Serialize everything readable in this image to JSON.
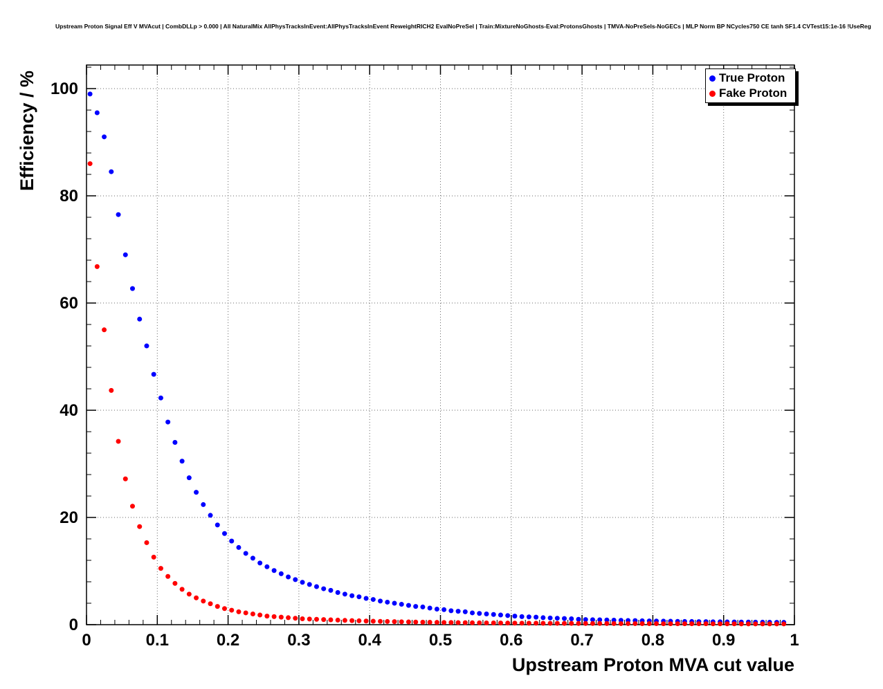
{
  "page": {
    "background": "#ffffff",
    "text_color": "#000000"
  },
  "chart_data": {
    "type": "scatter",
    "title": "Upstream Proton Signal Eff V MVAcut | CombDLLp > 0.000 | All NaturalMix AllPhysTracksInEvent:AllPhysTracksInEvent ReweightRICH2 EvalNoPreSel | Train:MixtureNoGhosts-Eval:ProtonsGhosts | TMVA-NoPreSels-NoGECs | MLP Norm BP NCycles750 CE tanh SF1.4 CVTest15:1e-16 !UseReg",
    "xlabel": "Upstream Proton MVA cut value",
    "ylabel": "Efficiency / %",
    "xlim": [
      0,
      1
    ],
    "ylim": [
      0,
      104.4
    ],
    "grid": true,
    "grid_color": "#666666",
    "frame_color": "#000000",
    "x_ticks": [
      0,
      0.1,
      0.2,
      0.3,
      0.4,
      0.5,
      0.6,
      0.7,
      0.8,
      0.9,
      1
    ],
    "x_tick_labels": [
      "0",
      "0.1",
      "0.2",
      "0.3",
      "0.4",
      "0.5",
      "0.6",
      "0.7",
      "0.8",
      "0.9",
      "1"
    ],
    "x_minor_step": 0.02,
    "y_ticks": [
      0,
      20,
      40,
      60,
      80,
      100
    ],
    "y_tick_labels": [
      "0",
      "20",
      "40",
      "60",
      "80",
      "100"
    ],
    "y_minor_step": 4,
    "legend": {
      "position": "top-right",
      "entries": [
        {
          "label": "True Proton",
          "color": "#0000ff",
          "marker": "circle"
        },
        {
          "label": "Fake Proton",
          "color": "#ff0000",
          "marker": "circle"
        }
      ]
    },
    "x": [
      0.005,
      0.015,
      0.025,
      0.035,
      0.045,
      0.055,
      0.065,
      0.075,
      0.085,
      0.095,
      0.105,
      0.115,
      0.125,
      0.135,
      0.145,
      0.155,
      0.165,
      0.175,
      0.185,
      0.195,
      0.205,
      0.215,
      0.225,
      0.235,
      0.245,
      0.255,
      0.265,
      0.275,
      0.285,
      0.295,
      0.305,
      0.315,
      0.325,
      0.335,
      0.345,
      0.355,
      0.365,
      0.375,
      0.385,
      0.395,
      0.405,
      0.415,
      0.425,
      0.435,
      0.445,
      0.455,
      0.465,
      0.475,
      0.485,
      0.495,
      0.505,
      0.515,
      0.525,
      0.535,
      0.545,
      0.555,
      0.565,
      0.575,
      0.585,
      0.595,
      0.605,
      0.615,
      0.625,
      0.635,
      0.645,
      0.655,
      0.665,
      0.675,
      0.685,
      0.695,
      0.705,
      0.715,
      0.725,
      0.735,
      0.745,
      0.755,
      0.765,
      0.775,
      0.785,
      0.795,
      0.805,
      0.815,
      0.825,
      0.835,
      0.845,
      0.855,
      0.865,
      0.875,
      0.885,
      0.895,
      0.905,
      0.915,
      0.925,
      0.935,
      0.945,
      0.955,
      0.965,
      0.975,
      0.985
    ],
    "series": [
      {
        "name": "True Proton",
        "color": "#0000ff",
        "values": [
          99.0,
          95.5,
          91.0,
          84.5,
          76.5,
          69.0,
          62.7,
          57.0,
          52.0,
          46.7,
          42.3,
          37.8,
          34.0,
          30.5,
          27.4,
          24.7,
          22.4,
          20.4,
          18.6,
          17.0,
          15.6,
          14.4,
          13.3,
          12.4,
          11.5,
          10.8,
          10.1,
          9.5,
          8.9,
          8.4,
          7.9,
          7.5,
          7.1,
          6.7,
          6.4,
          6.0,
          5.7,
          5.4,
          5.2,
          4.9,
          4.7,
          4.4,
          4.2,
          4.0,
          3.8,
          3.6,
          3.4,
          3.3,
          3.1,
          2.9,
          2.8,
          2.6,
          2.5,
          2.4,
          2.2,
          2.1,
          2.0,
          1.9,
          1.8,
          1.7,
          1.6,
          1.5,
          1.45,
          1.4,
          1.3,
          1.25,
          1.2,
          1.15,
          1.1,
          1.0,
          0.95,
          0.92,
          0.9,
          0.87,
          0.84,
          0.81,
          0.78,
          0.76,
          0.73,
          0.7,
          0.68,
          0.66,
          0.64,
          0.62,
          0.6,
          0.59,
          0.57,
          0.56,
          0.54,
          0.53,
          0.51,
          0.5,
          0.49,
          0.48,
          0.47,
          0.46,
          0.45,
          0.44,
          0.43
        ]
      },
      {
        "name": "Fake Proton",
        "color": "#ff0000",
        "values": [
          86.0,
          66.8,
          55.0,
          43.7,
          34.2,
          27.2,
          22.1,
          18.3,
          15.3,
          12.6,
          10.5,
          9.0,
          7.7,
          6.6,
          5.7,
          5.0,
          4.4,
          3.9,
          3.4,
          3.0,
          2.7,
          2.4,
          2.2,
          2.0,
          1.8,
          1.6,
          1.5,
          1.4,
          1.3,
          1.2,
          1.1,
          1.05,
          1.0,
          0.95,
          0.9,
          0.85,
          0.8,
          0.76,
          0.72,
          0.68,
          0.65,
          0.62,
          0.59,
          0.56,
          0.54,
          0.51,
          0.49,
          0.47,
          0.45,
          0.43,
          0.41,
          0.4,
          0.38,
          0.37,
          0.35,
          0.34,
          0.33,
          0.32,
          0.31,
          0.3,
          0.29,
          0.28,
          0.27,
          0.27,
          0.26,
          0.25,
          0.25,
          0.24,
          0.24,
          0.23,
          0.23,
          0.22,
          0.22,
          0.21,
          0.21,
          0.2,
          0.2,
          0.2,
          0.19,
          0.19,
          0.19,
          0.18,
          0.18,
          0.18,
          0.17,
          0.17,
          0.17,
          0.17,
          0.16,
          0.16,
          0.16,
          0.16,
          0.15,
          0.15,
          0.15,
          0.15,
          0.15,
          0.14,
          0.14
        ]
      }
    ]
  }
}
